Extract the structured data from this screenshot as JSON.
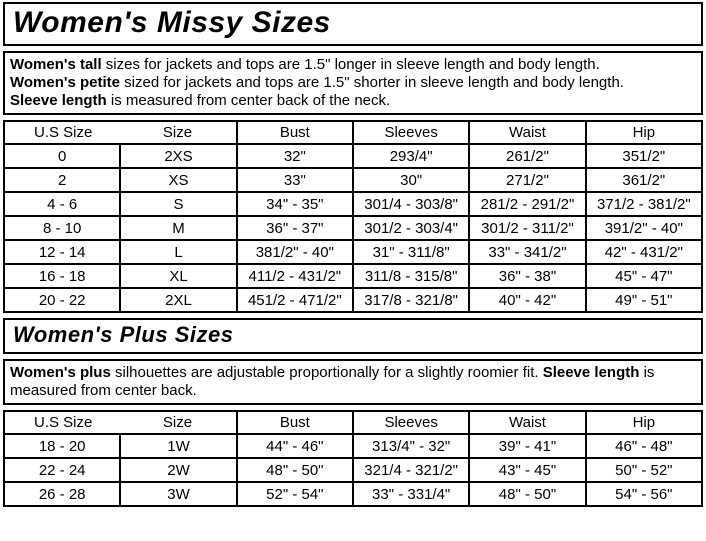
{
  "sections": [
    {
      "title": "Women's Missy Sizes",
      "description": [
        [
          {
            "b": true,
            "t": "Women's tall"
          },
          {
            "b": false,
            "t": " sizes for jackets and tops are 1.5\" longer in sleeve length and body length."
          }
        ],
        [
          {
            "b": true,
            "t": "Women's petite"
          },
          {
            "b": false,
            "t": " sized for jackets and tops are 1.5\" shorter in sleeve length and body length."
          }
        ],
        [
          {
            "b": true,
            "t": "Sleeve length"
          },
          {
            "b": false,
            "t": " is measured from center back of the neck."
          }
        ]
      ],
      "table": {
        "headers": [
          "U.S Size",
          "Size",
          "Bust",
          "Sleeves",
          "Waist",
          "Hip"
        ],
        "rows": [
          [
            "0",
            "2XS",
            "32\"",
            "293/4\"",
            "261/2\"",
            "351/2\""
          ],
          [
            "2",
            "XS",
            "33\"",
            "30\"",
            "271/2\"",
            "361/2\""
          ],
          [
            "4 - 6",
            "S",
            "34\" - 35\"",
            "301/4 - 303/8\"",
            "281/2 - 291/2\"",
            "371/2 - 381/2\""
          ],
          [
            "8 - 10",
            "M",
            "36\" - 37\"",
            "301/2 - 303/4\"",
            "301/2 - 311/2\"",
            "391/2\" - 40\""
          ],
          [
            "12 - 14",
            "L",
            "381/2\" - 40\"",
            "31\" - 311/8\"",
            "33\" - 341/2\"",
            "42\" - 431/2\""
          ],
          [
            "16 - 18",
            "XL",
            "411/2 - 431/2\"",
            "311/8 - 315/8\"",
            "36\" - 38\"",
            "45\" - 47\""
          ],
          [
            "20 - 22",
            "2XL",
            "451/2 - 471/2\"",
            "317/8 - 321/8\"",
            "40\" - 42\"",
            "49\" - 51\""
          ]
        ]
      }
    },
    {
      "title": "Women's Plus Sizes",
      "description": [
        [
          {
            "b": true,
            "t": "Women's plus"
          },
          {
            "b": false,
            "t": " silhouettes are adjustable proportionally for a slightly roomier fit. "
          },
          {
            "b": true,
            "t": "Sleeve length"
          },
          {
            "b": false,
            "t": " is measured from center back."
          }
        ]
      ],
      "table": {
        "headers": [
          "U.S Size",
          "Size",
          "Bust",
          "Sleeves",
          "Waist",
          "Hip"
        ],
        "rows": [
          [
            "18 - 20",
            "1W",
            "44\" - 46\"",
            "313/4\" - 32\"",
            "39\" - 41\"",
            "46\" - 48\""
          ],
          [
            "22 - 24",
            "2W",
            "48\" - 50\"",
            "321/4 - 321/2\"",
            "43\" - 45\"",
            "50\" - 52\""
          ],
          [
            "26 - 28",
            "3W",
            "52\" - 54\"",
            "33\" - 331/4\"",
            "48\" - 50\"",
            "54\" - 56\""
          ]
        ]
      }
    }
  ]
}
